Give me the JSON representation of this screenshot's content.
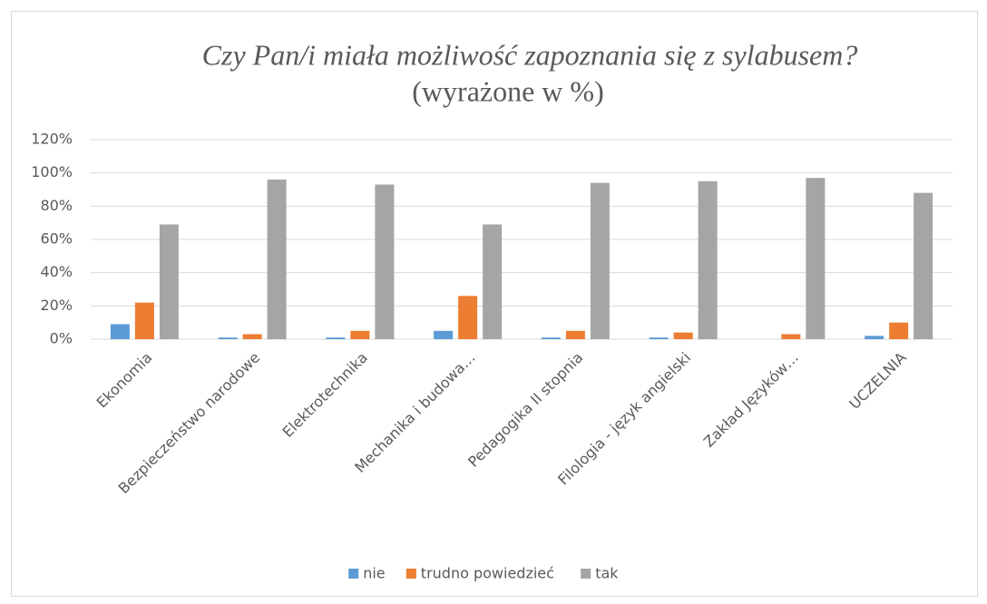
{
  "chart_data": {
    "type": "bar",
    "title": "Czy Pan/i miała możliwość zapoznania się z sylabusem?",
    "subtitle": "(wyrażone  w %)",
    "categories": [
      "Ekonomia",
      "Bezpieczeństwo narodowe",
      "Elektrotechnika",
      "Mechanika i budowa…",
      "Pedagogika II stopnia",
      "Filologia - język angielski",
      "Zakład Języków…",
      "UCZELNIA"
    ],
    "series": [
      {
        "name": "nie",
        "color": "#5b9bd5",
        "values": [
          9,
          1,
          1,
          5,
          1,
          1,
          0,
          2
        ]
      },
      {
        "name": "trudno powiedzieć",
        "color": "#ed7d31",
        "values": [
          22,
          3,
          5,
          26,
          5,
          4,
          3,
          10
        ]
      },
      {
        "name": "tak",
        "color": "#a5a5a5",
        "values": [
          69,
          96,
          93,
          69,
          94,
          95,
          97,
          88
        ]
      }
    ],
    "ylim": [
      0,
      120
    ],
    "yticks": [
      {
        "value": 0,
        "label": "0%"
      },
      {
        "value": 20,
        "label": "20%"
      },
      {
        "value": 40,
        "label": "40%"
      },
      {
        "value": 60,
        "label": "60%"
      },
      {
        "value": 80,
        "label": "80%"
      },
      {
        "value": 100,
        "label": "100%"
      },
      {
        "value": 120,
        "label": "120%"
      }
    ],
    "grid": true,
    "legend": "bottom"
  }
}
